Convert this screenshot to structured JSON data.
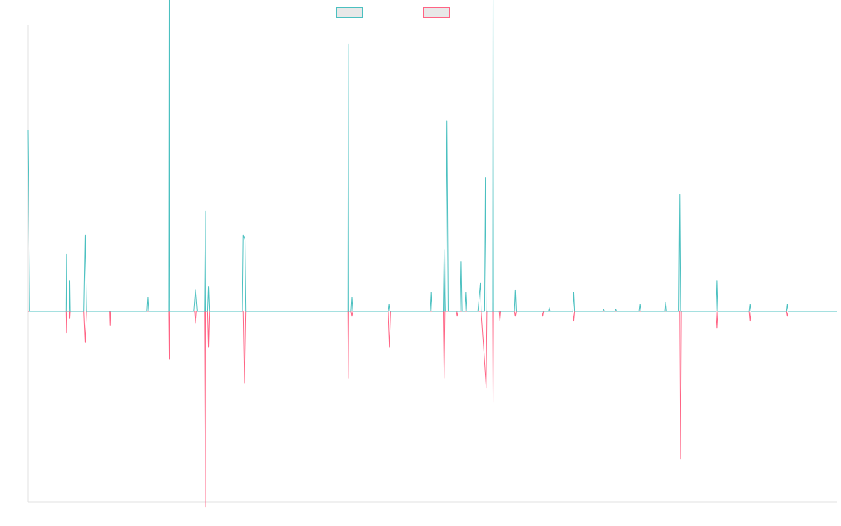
{
  "chart_data": {
    "type": "area",
    "title": "",
    "xlabel": "",
    "ylabel": "",
    "baseline_fraction": 0.6,
    "colors": {
      "series_a": "#4bc0c0",
      "series_b": "#ff6384",
      "legend_fill": "#e8e8e8",
      "axis": "#e0e0e0"
    },
    "legend": {
      "placement": "top-center"
    },
    "series": [
      {
        "key": "a",
        "name": "",
        "points": [
          [
            0,
            0.38
          ],
          [
            0.002,
            0
          ],
          [
            0.047,
            0
          ],
          [
            0.0475,
            0.12
          ],
          [
            0.048,
            0
          ],
          [
            0.051,
            0
          ],
          [
            0.0515,
            0.065
          ],
          [
            0.052,
            0
          ],
          [
            0.069,
            0
          ],
          [
            0.0705,
            0.16
          ],
          [
            0.072,
            0
          ],
          [
            0.147,
            0
          ],
          [
            0.148,
            0.03
          ],
          [
            0.149,
            0
          ],
          [
            0.174,
            0
          ],
          [
            0.1745,
            0.75
          ],
          [
            0.175,
            0
          ],
          [
            0.205,
            0
          ],
          [
            0.207,
            0.046
          ],
          [
            0.209,
            0
          ],
          [
            0.218,
            0
          ],
          [
            0.219,
            0.21
          ],
          [
            0.2195,
            0
          ],
          [
            0.222,
            0
          ],
          [
            0.223,
            0.052
          ],
          [
            0.224,
            0
          ],
          [
            0.265,
            0
          ],
          [
            0.266,
            0.16
          ],
          [
            0.268,
            0.15
          ],
          [
            0.269,
            0
          ],
          [
            0.395,
            0
          ],
          [
            0.3955,
            0.56
          ],
          [
            0.396,
            0
          ],
          [
            0.399,
            0
          ],
          [
            0.4,
            0.03
          ],
          [
            0.401,
            0
          ],
          [
            0.445,
            0
          ],
          [
            0.446,
            0.015
          ],
          [
            0.447,
            0
          ],
          [
            0.497,
            0
          ],
          [
            0.498,
            0.04
          ],
          [
            0.499,
            0
          ],
          [
            0.513,
            0
          ],
          [
            0.514,
            0.13
          ],
          [
            0.515,
            0
          ],
          [
            0.516,
            0
          ],
          [
            0.5175,
            0.4
          ],
          [
            0.519,
            0
          ],
          [
            0.534,
            0
          ],
          [
            0.535,
            0.105
          ],
          [
            0.536,
            0
          ],
          [
            0.54,
            0
          ],
          [
            0.541,
            0.04
          ],
          [
            0.542,
            0
          ],
          [
            0.556,
            0
          ],
          [
            0.559,
            0.06
          ],
          [
            0.56,
            0
          ],
          [
            0.564,
            0
          ],
          [
            0.565,
            0.28
          ],
          [
            0.566,
            0
          ],
          [
            0.574,
            0
          ],
          [
            0.5745,
            0.71
          ],
          [
            0.575,
            0
          ],
          [
            0.601,
            0
          ],
          [
            0.602,
            0.045
          ],
          [
            0.603,
            0
          ],
          [
            0.643,
            0
          ],
          [
            0.644,
            0.008
          ],
          [
            0.645,
            0
          ],
          [
            0.673,
            0
          ],
          [
            0.674,
            0.04
          ],
          [
            0.675,
            0
          ],
          [
            0.71,
            0
          ],
          [
            0.711,
            0.005
          ],
          [
            0.712,
            0
          ],
          [
            0.725,
            0
          ],
          [
            0.726,
            0.005
          ],
          [
            0.727,
            0
          ],
          [
            0.755,
            0
          ],
          [
            0.756,
            0.015
          ],
          [
            0.757,
            0
          ],
          [
            0.787,
            0
          ],
          [
            0.788,
            0.02
          ],
          [
            0.789,
            0
          ],
          [
            0.804,
            0
          ],
          [
            0.805,
            0.245
          ],
          [
            0.806,
            0
          ],
          [
            0.85,
            0
          ],
          [
            0.851,
            0.065
          ],
          [
            0.852,
            0
          ],
          [
            0.891,
            0
          ],
          [
            0.892,
            0.015
          ],
          [
            0.893,
            0
          ],
          [
            0.937,
            0
          ],
          [
            0.938,
            0.015
          ],
          [
            0.939,
            0
          ],
          [
            1.0,
            0
          ]
        ]
      },
      {
        "key": "b",
        "name": "",
        "points": [
          [
            0,
            0
          ],
          [
            0.047,
            0
          ],
          [
            0.0475,
            -0.045
          ],
          [
            0.048,
            0
          ],
          [
            0.051,
            0
          ],
          [
            0.0515,
            -0.015
          ],
          [
            0.052,
            0
          ],
          [
            0.069,
            0
          ],
          [
            0.0705,
            -0.065
          ],
          [
            0.072,
            0
          ],
          [
            0.101,
            0
          ],
          [
            0.1015,
            -0.03
          ],
          [
            0.102,
            0
          ],
          [
            0.174,
            0
          ],
          [
            0.1745,
            -0.1
          ],
          [
            0.175,
            0
          ],
          [
            0.206,
            0
          ],
          [
            0.207,
            -0.025
          ],
          [
            0.208,
            0
          ],
          [
            0.218,
            0
          ],
          [
            0.219,
            -0.41
          ],
          [
            0.2195,
            0
          ],
          [
            0.222,
            0
          ],
          [
            0.223,
            -0.075
          ],
          [
            0.224,
            0
          ],
          [
            0.266,
            0
          ],
          [
            0.2675,
            -0.15
          ],
          [
            0.269,
            0
          ],
          [
            0.395,
            0
          ],
          [
            0.3955,
            -0.14
          ],
          [
            0.396,
            0
          ],
          [
            0.399,
            0
          ],
          [
            0.4,
            -0.01
          ],
          [
            0.401,
            0
          ],
          [
            0.445,
            0
          ],
          [
            0.4465,
            -0.075
          ],
          [
            0.448,
            0
          ],
          [
            0.513,
            0
          ],
          [
            0.514,
            -0.14
          ],
          [
            0.515,
            0
          ],
          [
            0.529,
            0
          ],
          [
            0.53,
            -0.01
          ],
          [
            0.531,
            0
          ],
          [
            0.56,
            0
          ],
          [
            0.566,
            -0.16
          ],
          [
            0.567,
            0
          ],
          [
            0.574,
            0
          ],
          [
            0.5745,
            -0.19
          ],
          [
            0.575,
            0
          ],
          [
            0.582,
            0
          ],
          [
            0.583,
            -0.02
          ],
          [
            0.584,
            0
          ],
          [
            0.601,
            0
          ],
          [
            0.602,
            -0.01
          ],
          [
            0.603,
            0
          ],
          [
            0.635,
            0
          ],
          [
            0.636,
            -0.01
          ],
          [
            0.637,
            0
          ],
          [
            0.673,
            0
          ],
          [
            0.674,
            -0.02
          ],
          [
            0.675,
            0
          ],
          [
            0.805,
            0
          ],
          [
            0.806,
            -0.31
          ],
          [
            0.807,
            0
          ],
          [
            0.85,
            0
          ],
          [
            0.851,
            -0.035
          ],
          [
            0.852,
            0
          ],
          [
            0.891,
            0
          ],
          [
            0.892,
            -0.02
          ],
          [
            0.893,
            0
          ],
          [
            0.937,
            0
          ],
          [
            0.938,
            -0.01
          ],
          [
            0.939,
            0
          ],
          [
            1.0,
            0
          ]
        ]
      }
    ]
  }
}
